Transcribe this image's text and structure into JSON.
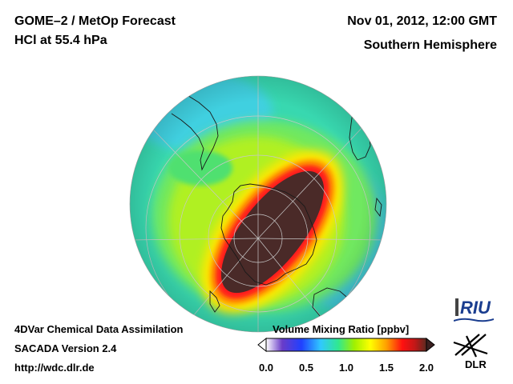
{
  "header": {
    "title_line1": "GOME–2 / MetOp Forecast",
    "title_line2": "HCl at 55.4 hPa",
    "datetime": "Nov 01, 2012, 12:00 GMT",
    "region": "Southern Hemisphere"
  },
  "footer": {
    "line1": "4DVar Chemical Data Assimilation",
    "line2": "SACADA Version 2.4",
    "line3": "http://wdc.dlr.de"
  },
  "colorbar": {
    "title": "Volume Mixing Ratio [ppbv]",
    "ticks": [
      "0.0",
      "0.5",
      "1.0",
      "1.5",
      "2.0"
    ],
    "range": [
      0.0,
      2.0
    ],
    "colors": [
      "#ffffff",
      "#6a3cc8",
      "#2040ff",
      "#30c8ff",
      "#30e890",
      "#a0f000",
      "#ffff00",
      "#ffa000",
      "#ff1010",
      "#c01818",
      "#5a2a20"
    ]
  },
  "map": {
    "projection": "orthographic, south pole view",
    "field_colors": {
      "background_zone": "#30e0a0",
      "mid_zone": "#9af020",
      "ring_yellow": "#ffe000",
      "ring_red": "#ff1010",
      "core": "#4a2a28"
    }
  },
  "logos": {
    "riu": "RIU",
    "dlr": "DLR"
  }
}
